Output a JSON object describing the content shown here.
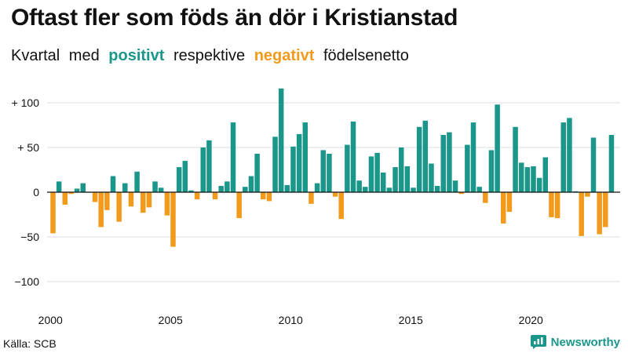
{
  "title": "Oftast fler som föds än dör i Kristianstad",
  "subtitle": {
    "part1": "Kvartal med",
    "positive": "positivt",
    "part2": "respektive",
    "negative": "negativt",
    "part3": "födelsenetto"
  },
  "colors": {
    "positive": "#1a968a",
    "negative": "#f29a1c",
    "grid": "#dcdcdc",
    "zero": "#111111"
  },
  "source": "Källa: SCB",
  "brand": "Newsworthy",
  "chart_data": {
    "type": "bar",
    "title": "Oftast fler som föds än dör i Kristianstad",
    "xlabel": "",
    "ylabel": "",
    "ylim": [
      -125,
      120
    ],
    "y_ticks": [
      100,
      50,
      0,
      -50,
      -100
    ],
    "y_tick_labels": [
      "+ 100",
      "+ 50",
      "0",
      "−50",
      "−100"
    ],
    "x_tick_labels": [
      "2000",
      "2005",
      "2010",
      "2015",
      "2020"
    ],
    "x_tick_years": [
      2000,
      2005,
      2010,
      2015,
      2020
    ],
    "start_year": 2000,
    "grid": true,
    "values": [
      -46,
      12,
      -14,
      -2,
      4,
      10,
      0,
      -11,
      -39,
      -20,
      18,
      -33,
      10,
      -16,
      23,
      -23,
      -17,
      12,
      5,
      -26,
      -61,
      28,
      35,
      2,
      -8,
      50,
      58,
      -8,
      7,
      12,
      78,
      -29,
      6,
      18,
      43,
      -8,
      -10,
      62,
      116,
      8,
      51,
      65,
      78,
      -13,
      10,
      47,
      43,
      -5,
      -30,
      53,
      79,
      13,
      6,
      40,
      44,
      22,
      5,
      28,
      50,
      29,
      5,
      73,
      80,
      32,
      7,
      64,
      67,
      13,
      -2,
      53,
      78,
      6,
      -12,
      47,
      98,
      -35,
      -22,
      73,
      33,
      28,
      29,
      16,
      39,
      -28,
      -29,
      78,
      83,
      1,
      -49,
      -5,
      61,
      -47,
      -39,
      64
    ]
  }
}
